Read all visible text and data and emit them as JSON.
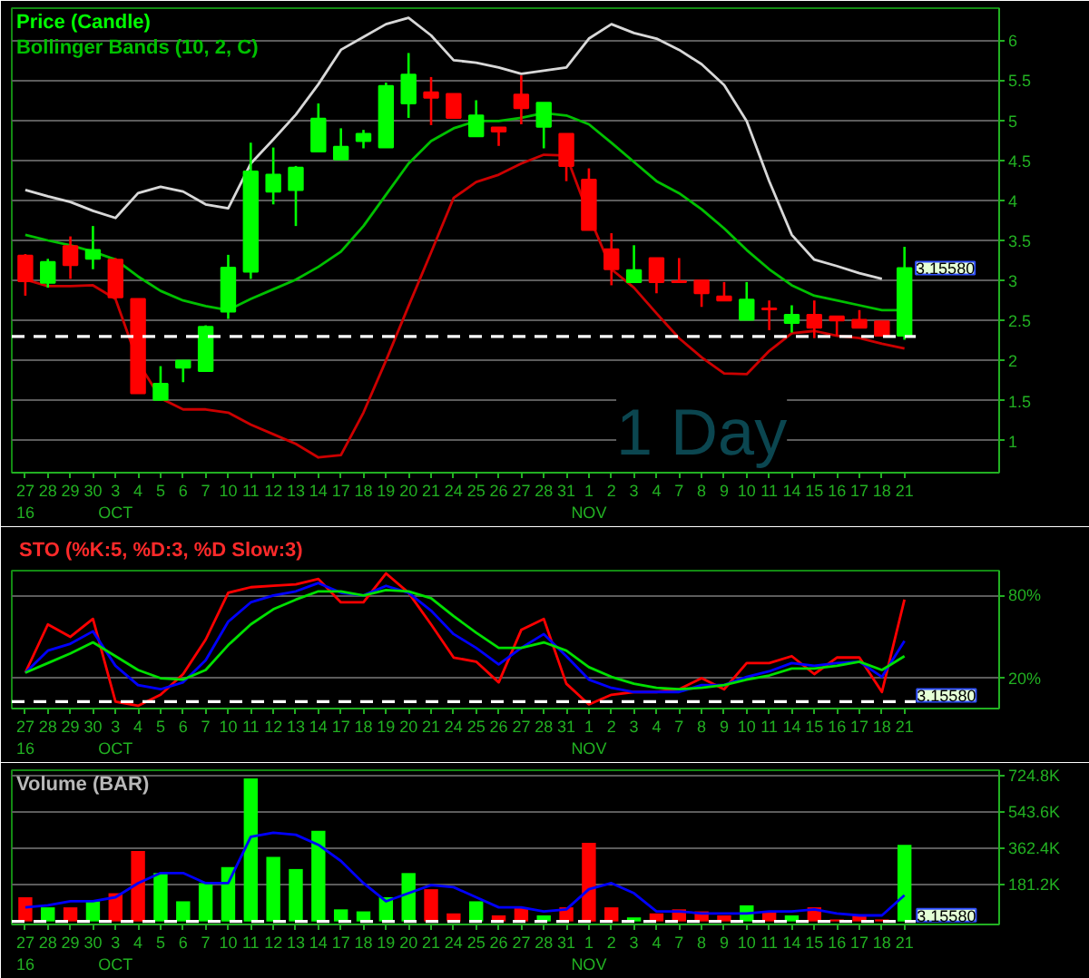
{
  "chart_data": [
    {
      "type": "candlestick",
      "title": "Price (Candle)",
      "subtitle": "1 Day",
      "legend": "top left",
      "categories": [
        "27\n16",
        "28",
        "29",
        "30",
        "3\nOCT",
        "4",
        "5",
        "6",
        "7",
        "10",
        "11",
        "12",
        "13",
        "14",
        "17",
        "18",
        "19",
        "20",
        "21",
        "24",
        "25",
        "26",
        "27",
        "28",
        "31",
        "1\nNOV",
        "2",
        "3",
        "4",
        "7",
        "8",
        "9",
        "10",
        "11",
        "14",
        "15",
        "16",
        "17",
        "18",
        "21"
      ],
      "ohlc": [
        [
          3.31,
          3.33,
          2.81,
          2.99
        ],
        [
          2.97,
          3.27,
          2.91,
          3.23
        ],
        [
          3.43,
          3.55,
          3.02,
          3.19
        ],
        [
          3.27,
          3.68,
          3.14,
          3.38
        ],
        [
          3.26,
          3.28,
          2.77,
          2.79
        ],
        [
          2.77,
          2.77,
          1.59,
          1.59
        ],
        [
          1.51,
          1.93,
          1.51,
          1.71
        ],
        [
          1.91,
          2.0,
          1.73,
          2.0
        ],
        [
          1.87,
          2.44,
          1.87,
          2.42
        ],
        [
          2.61,
          3.32,
          2.52,
          3.16
        ],
        [
          3.11,
          4.72,
          3.02,
          4.36
        ],
        [
          4.11,
          4.66,
          3.95,
          4.32
        ],
        [
          4.13,
          4.43,
          3.68,
          4.41
        ],
        [
          4.61,
          5.21,
          4.61,
          5.02
        ],
        [
          4.51,
          4.9,
          4.51,
          4.67
        ],
        [
          4.74,
          4.88,
          4.65,
          4.83
        ],
        [
          4.66,
          5.47,
          4.66,
          5.43
        ],
        [
          5.21,
          5.84,
          5.03,
          5.57
        ],
        [
          5.35,
          5.54,
          4.94,
          5.28
        ],
        [
          5.33,
          5.33,
          5.03,
          5.03
        ],
        [
          4.8,
          5.25,
          4.8,
          5.06
        ],
        [
          4.91,
          4.91,
          4.68,
          4.86
        ],
        [
          5.32,
          5.56,
          4.95,
          5.15
        ],
        [
          4.92,
          5.22,
          4.65,
          5.22
        ],
        [
          4.83,
          4.83,
          4.24,
          4.43
        ],
        [
          4.26,
          4.4,
          3.63,
          3.63
        ],
        [
          3.39,
          3.59,
          2.94,
          3.14
        ],
        [
          2.98,
          3.44,
          2.98,
          3.13
        ],
        [
          3.28,
          3.28,
          2.84,
          2.98
        ],
        [
          2.99,
          3.28,
          2.98,
          2.98
        ],
        [
          3.0,
          3.0,
          2.67,
          2.84
        ],
        [
          2.8,
          2.98,
          2.75,
          2.75
        ],
        [
          2.51,
          2.98,
          2.51,
          2.76
        ],
        [
          2.65,
          2.75,
          2.38,
          2.64
        ],
        [
          2.47,
          2.69,
          2.35,
          2.57
        ],
        [
          2.57,
          2.75,
          2.28,
          2.41
        ],
        [
          2.55,
          2.55,
          2.31,
          2.5
        ],
        [
          2.51,
          2.63,
          2.41,
          2.41
        ],
        [
          2.49,
          2.49,
          2.31,
          2.31
        ],
        [
          2.31,
          3.42,
          2.26,
          3.1558
        ]
      ],
      "colors": [
        "#ff0000",
        "#00ff00",
        "#ff0000",
        "#00ff00",
        "#ff0000",
        "#ff0000",
        "#00ff00",
        "#00ff00",
        "#00ff00",
        "#00ff00",
        "#00ff00",
        "#00ff00",
        "#00ff00",
        "#00ff00",
        "#00ff00",
        "#00ff00",
        "#00ff00",
        "#00ff00",
        "#ff0000",
        "#ff0000",
        "#00ff00",
        "#ff0000",
        "#ff0000",
        "#00ff00",
        "#ff0000",
        "#ff0000",
        "#ff0000",
        "#00ff00",
        "#ff0000",
        "#ff0000",
        "#ff0000",
        "#ff0000",
        "#00ff00",
        "#ff0000",
        "#00ff00",
        "#ff0000",
        "#ff0000",
        "#ff0000",
        "#ff0000",
        "#00ff00"
      ],
      "series": [
        {
          "type": "line",
          "color": "#d8d8d8",
          "values": [
            4.13,
            4.05,
            3.98,
            3.87,
            3.78,
            4.09,
            4.17,
            4.11,
            3.95,
            3.9,
            4.46,
            4.76,
            5.07,
            5.45,
            5.88,
            6.04,
            6.2,
            6.28,
            6.06,
            5.75,
            5.72,
            5.66,
            5.58,
            5.62,
            5.66,
            6.02,
            6.2,
            6.09,
            6.02,
            5.88,
            5.7,
            5.44,
            4.99,
            4.24,
            3.57,
            3.26,
            3.18,
            3.09,
            3.02,
            null
          ]
        },
        {
          "type": "line",
          "name": "Bollinger Bands (10, 2, C)",
          "color": "#00c000",
          "values": [
            3.57,
            3.5,
            3.44,
            3.36,
            3.26,
            3.05,
            2.87,
            2.75,
            2.68,
            2.63,
            2.77,
            2.89,
            3.01,
            3.17,
            3.36,
            3.68,
            4.07,
            4.46,
            4.74,
            4.9,
            4.99,
            4.99,
            5.03,
            5.09,
            5.06,
            4.95,
            4.72,
            4.48,
            4.24,
            4.09,
            3.89,
            3.65,
            3.38,
            3.14,
            2.94,
            2.81,
            2.75,
            2.69,
            2.63,
            2.63
          ]
        },
        {
          "type": "line",
          "color": "#cc0000",
          "values": [
            3.01,
            2.93,
            2.93,
            2.94,
            2.77,
            1.98,
            1.53,
            1.39,
            1.39,
            1.35,
            1.2,
            1.08,
            0.96,
            0.79,
            0.82,
            1.35,
            2.0,
            2.68,
            3.35,
            4.03,
            4.23,
            4.32,
            4.46,
            4.57,
            4.56,
            3.81,
            3.14,
            2.91,
            2.59,
            2.28,
            2.04,
            1.84,
            1.83,
            2.12,
            2.34,
            2.37,
            2.31,
            2.28,
            2.21,
            2.15
          ]
        }
      ],
      "ylim": [
        0.6,
        6.4
      ],
      "yticks": [
        1,
        1.5,
        2,
        2.5,
        3,
        3.5,
        4,
        4.5,
        5,
        5.5,
        6
      ],
      "grid": "y",
      "ref_lines": [
        {
          "axis": "y",
          "value": 2.3,
          "line_style": "dashed",
          "color": "#ffffff"
        }
      ],
      "annotations": [
        "3.15580"
      ]
    },
    {
      "type": "line",
      "title": "STO (%K:5, %D:3, %D Slow:3)",
      "categories": [
        "27\n16",
        "28",
        "29",
        "30",
        "3\nOCT",
        "4",
        "5",
        "6",
        "7",
        "10",
        "11",
        "12",
        "13",
        "14",
        "17",
        "18",
        "19",
        "20",
        "21",
        "24",
        "25",
        "26",
        "27",
        "28",
        "31",
        "1\nNOV",
        "2",
        "3",
        "4",
        "7",
        "8",
        "9",
        "10",
        "11",
        "14",
        "15",
        "16",
        "17",
        "18",
        "21"
      ],
      "series": [
        {
          "color": "#ff0000",
          "values": [
            24,
            59,
            50,
            63,
            3,
            0,
            8,
            23,
            48,
            82,
            86,
            87,
            88,
            92,
            75,
            75,
            96,
            82,
            59,
            35,
            32,
            17,
            55,
            63,
            16,
            1,
            8,
            10,
            10,
            12,
            20,
            12,
            31,
            31,
            36,
            23,
            35,
            35,
            10,
            77
          ]
        },
        {
          "color": "#0000ff",
          "values": [
            24,
            40,
            45,
            54,
            29,
            15,
            12,
            17,
            33,
            61,
            75,
            80,
            83,
            89,
            82,
            80,
            87,
            82,
            69,
            52,
            42,
            30,
            42,
            52,
            36,
            19,
            13,
            10,
            10,
            10,
            15,
            15,
            21,
            25,
            31,
            29,
            31,
            32,
            21,
            47
          ]
        },
        {
          "color": "#00e000",
          "values": [
            24,
            31,
            38,
            46,
            36,
            26,
            20,
            19,
            26,
            44,
            59,
            70,
            77,
            83,
            83,
            80,
            84,
            83,
            78,
            65,
            53,
            42,
            42,
            46,
            40,
            28,
            21,
            16,
            13,
            12,
            13,
            15,
            19,
            22,
            27,
            27,
            29,
            32,
            26,
            36
          ]
        }
      ],
      "ylim": [
        -2,
        98
      ],
      "yticks": [
        {
          "value": 80,
          "label": "80%"
        },
        {
          "value": 20,
          "label": "20%"
        }
      ],
      "grid": "y",
      "ref_lines": [
        {
          "axis": "y",
          "value": 3,
          "line_style": "dashed",
          "color": "#ffffff"
        }
      ],
      "annotations": [
        "3.15580"
      ]
    },
    {
      "type": "bar",
      "title": "Volume (BAR)",
      "categories": [
        "27\n16",
        "28",
        "29",
        "30",
        "3\nOCT",
        "4",
        "5",
        "6",
        "7",
        "10",
        "11",
        "12",
        "13",
        "14",
        "17",
        "18",
        "19",
        "20",
        "21",
        "24",
        "25",
        "26",
        "27",
        "28",
        "31",
        "1\nNOV",
        "2",
        "3",
        "4",
        "7",
        "8",
        "9",
        "10",
        "11",
        "14",
        "15",
        "16",
        "17",
        "18",
        "21"
      ],
      "series": [
        {
          "type": "bar",
          "colors": [
            "#ff0000",
            "#00ff00",
            "#ff0000",
            "#00ff00",
            "#ff0000",
            "#ff0000",
            "#00ff00",
            "#00ff00",
            "#00ff00",
            "#00ff00",
            "#00ff00",
            "#00ff00",
            "#00ff00",
            "#00ff00",
            "#00ff00",
            "#00ff00",
            "#00ff00",
            "#00ff00",
            "#ff0000",
            "#ff0000",
            "#00ff00",
            "#ff0000",
            "#ff0000",
            "#00ff00",
            "#ff0000",
            "#ff0000",
            "#ff0000",
            "#00ff00",
            "#ff0000",
            "#ff0000",
            "#ff0000",
            "#ff0000",
            "#00ff00",
            "#ff0000",
            "#00ff00",
            "#ff0000",
            "#ff0000",
            "#ff0000",
            "#ff0000",
            "#00ff00"
          ],
          "values": [
            120,
            70,
            70,
            100,
            140,
            350,
            240,
            100,
            190,
            270,
            710,
            320,
            260,
            450,
            60,
            50,
            120,
            240,
            160,
            40,
            100,
            30,
            70,
            30,
            70,
            390,
            70,
            20,
            40,
            60,
            50,
            30,
            80,
            50,
            30,
            70,
            10,
            30,
            10,
            380
          ]
        },
        {
          "type": "line",
          "color": "#0000ff",
          "values": [
            70,
            80,
            100,
            100,
            120,
            190,
            240,
            240,
            190,
            190,
            420,
            440,
            430,
            380,
            300,
            190,
            100,
            140,
            180,
            170,
            120,
            70,
            70,
            50,
            60,
            160,
            190,
            140,
            50,
            50,
            40,
            40,
            40,
            50,
            50,
            60,
            40,
            30,
            30,
            130
          ]
        }
      ],
      "ylim": [
        -15,
        750
      ],
      "yticks": [
        {
          "value": 181.2,
          "label": "181.2K"
        },
        {
          "value": 362.4,
          "label": "362.4K"
        },
        {
          "value": 543.6,
          "label": "543.6K"
        },
        {
          "value": 724.8,
          "label": "724.8K"
        }
      ],
      "grid": "y",
      "ref_lines": [
        {
          "axis": "y",
          "value": 0,
          "line_style": "dashed",
          "color": "#ffffff"
        }
      ],
      "annotations": [
        "3.15580"
      ]
    }
  ]
}
